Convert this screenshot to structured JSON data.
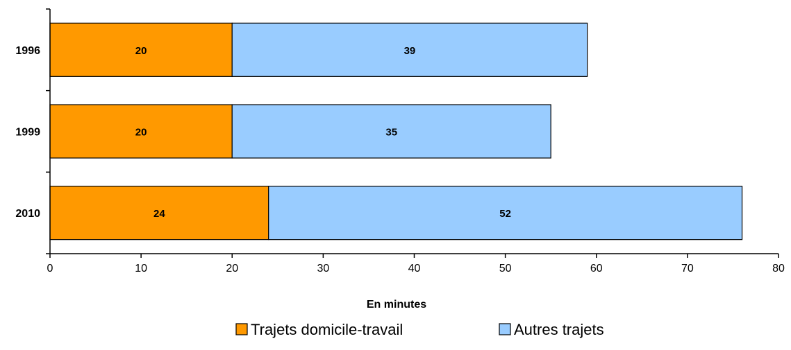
{
  "chart_data": {
    "type": "bar",
    "orientation": "horizontal",
    "stacked": true,
    "categories": [
      "1996",
      "1999",
      "2010"
    ],
    "series": [
      {
        "name": "Trajets domicile-travail",
        "values": [
          20,
          20,
          24
        ],
        "color": "#FF9900"
      },
      {
        "name": "Autres trajets",
        "values": [
          39,
          35,
          52
        ],
        "color": "#99CCFF"
      }
    ],
    "xlabel": "En  minutes",
    "ylabel": "",
    "title": "",
    "xlim": [
      0,
      80
    ],
    "xticks": [
      0,
      10,
      20,
      30,
      40,
      50,
      60,
      70,
      80
    ],
    "grid": false,
    "legend_position": "bottom"
  }
}
